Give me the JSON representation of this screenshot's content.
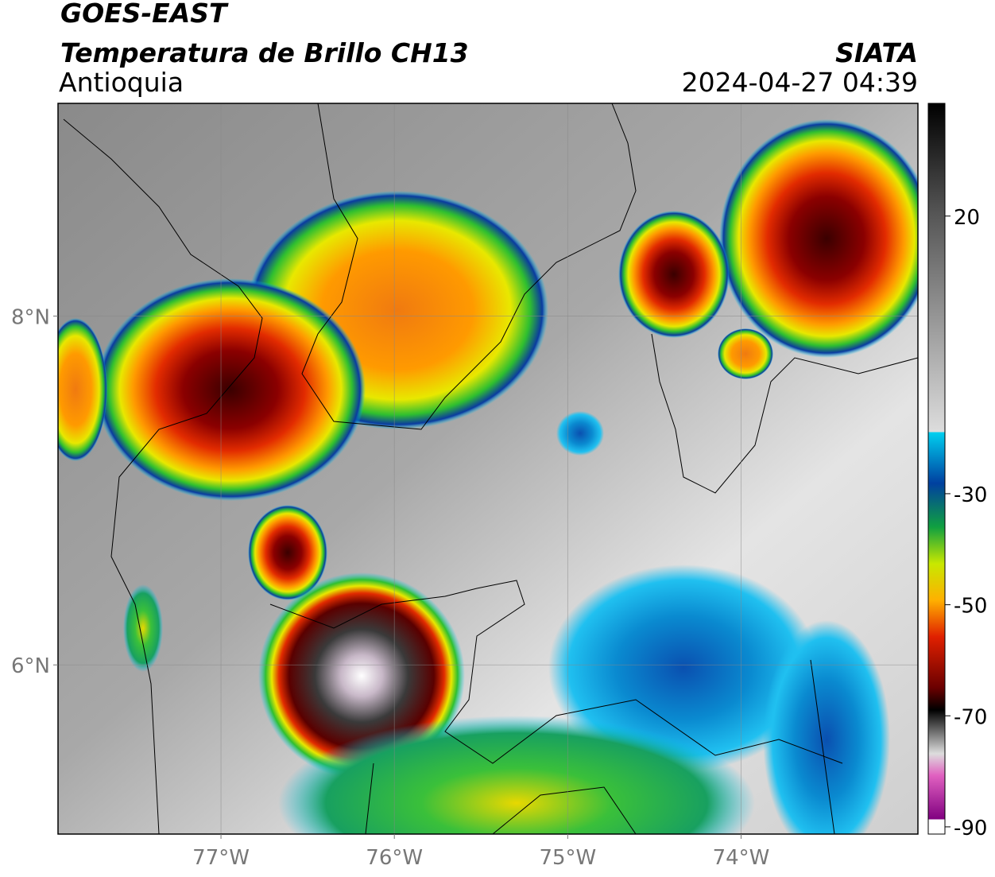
{
  "header": {
    "line1": "GOES-EAST",
    "line2": "Temperatura de Brillo CH13",
    "region": "Antioquia",
    "source": "SIATA",
    "datetime": "2024-04-27 04:39"
  },
  "map": {
    "lonlim": [
      -77.94,
      -72.98
    ],
    "latlim": [
      5.03,
      9.22
    ],
    "lon_ticks": [
      {
        "value": -77,
        "label": "77°W"
      },
      {
        "value": -76,
        "label": "76°W"
      },
      {
        "value": -75,
        "label": "75°W"
      },
      {
        "value": -74,
        "label": "74°W"
      }
    ],
    "lat_ticks": [
      {
        "value": 8,
        "label": "8°N"
      },
      {
        "value": 6,
        "label": "6°N"
      }
    ]
  },
  "colorbar": {
    "lim": [
      -91.3,
      40.3
    ],
    "ticks": [
      20,
      -30,
      -50,
      -70,
      -90
    ]
  }
}
